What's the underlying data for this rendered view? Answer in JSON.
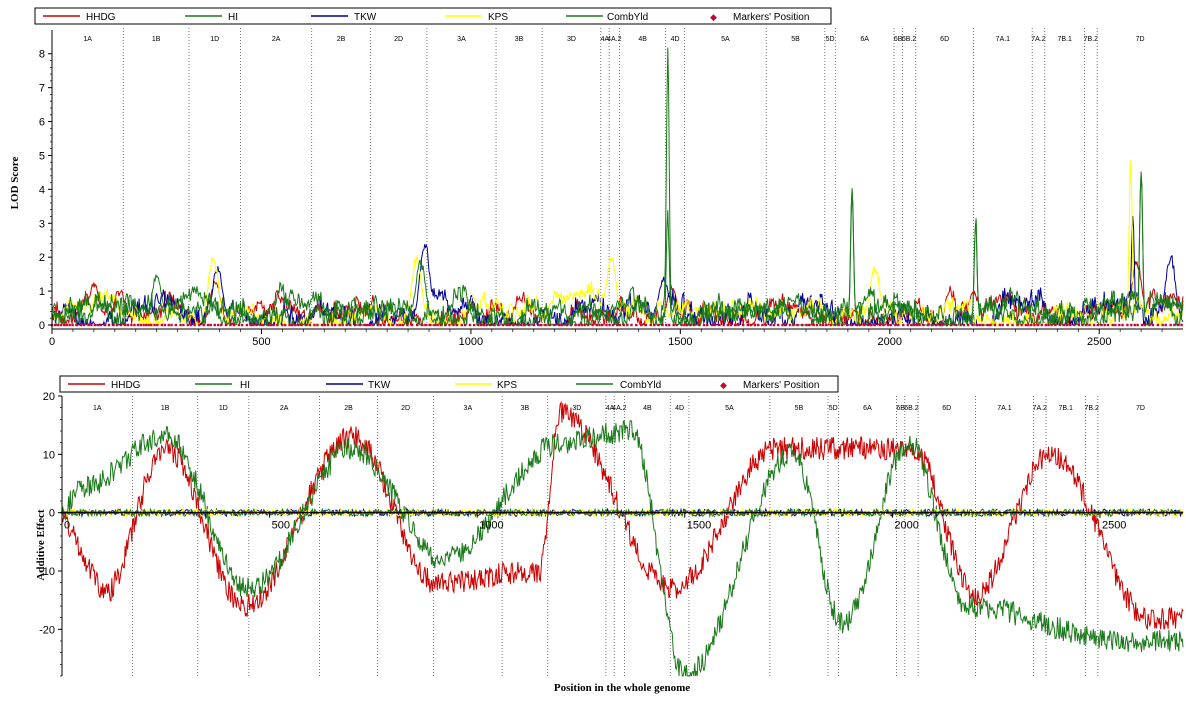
{
  "colors": {
    "HHDG": "#cc0000",
    "HI": "#1a7a1a",
    "TKW": "#000099",
    "KPS": "#ffff00",
    "CombYld": "#1a7a1a",
    "markers": "#cc0033"
  },
  "chart_data": [
    {
      "type": "line",
      "ylabel": "LOD Score",
      "xlabel": "",
      "xlim": [
        0,
        2700
      ],
      "ylim": [
        0,
        8.7
      ],
      "x_ticks": [
        "0",
        "500",
        "1000",
        "1500",
        "2000",
        "2500"
      ],
      "y_ticks": [
        "0",
        "1",
        "2",
        "3",
        "4",
        "5",
        "6",
        "7",
        "8"
      ],
      "legend": [
        "HHDG",
        "HI",
        "TKW",
        "KPS",
        "CombYld",
        "Markers' Position"
      ],
      "legend_placement": "top",
      "grid": false,
      "chromosomes": [
        {
          "label": "1A",
          "start": 0,
          "end": 170
        },
        {
          "label": "1B",
          "start": 170,
          "end": 327
        },
        {
          "label": "1D",
          "start": 327,
          "end": 450
        },
        {
          "label": "2A",
          "start": 450,
          "end": 620
        },
        {
          "label": "2B",
          "start": 620,
          "end": 760
        },
        {
          "label": "2D",
          "start": 760,
          "end": 895
        },
        {
          "label": "3A",
          "start": 895,
          "end": 1060
        },
        {
          "label": "3B",
          "start": 1060,
          "end": 1170
        },
        {
          "label": "3D",
          "start": 1170,
          "end": 1310
        },
        {
          "label": "4A",
          "start": 1310,
          "end": 1330
        },
        {
          "label": "4A.2",
          "start": 1330,
          "end": 1355
        },
        {
          "label": "4B",
          "start": 1355,
          "end": 1465
        },
        {
          "label": "4D",
          "start": 1465,
          "end": 1510
        },
        {
          "label": "5A",
          "start": 1510,
          "end": 1705
        },
        {
          "label": "5B",
          "start": 1705,
          "end": 1845
        },
        {
          "label": "5D",
          "start": 1845,
          "end": 1870
        },
        {
          "label": "6A",
          "start": 1870,
          "end": 2010
        },
        {
          "label": "6B",
          "start": 2010,
          "end": 2030
        },
        {
          "label": "6B.2",
          "start": 2030,
          "end": 2062
        },
        {
          "label": "6D",
          "start": 2062,
          "end": 2200
        },
        {
          "label": "7A.1",
          "start": 2200,
          "end": 2340
        },
        {
          "label": "7A.2",
          "start": 2340,
          "end": 2370
        },
        {
          "label": "7B.1",
          "start": 2370,
          "end": 2465
        },
        {
          "label": "7B.2",
          "start": 2465,
          "end": 2495
        },
        {
          "label": "7D",
          "start": 2495,
          "end": 2700
        }
      ],
      "series": [
        {
          "name": "HHDG",
          "peaks": [
            [
              100,
              1.3
            ],
            [
              390,
              1.4
            ],
            [
              1480,
              1.2
            ],
            [
              2200,
              1.0
            ],
            [
              2590,
              2.0
            ]
          ]
        },
        {
          "name": "HI",
          "peaks": [
            [
              250,
              1.6
            ],
            [
              880,
              2.0
            ],
            [
              1470,
              3.5
            ],
            [
              1910,
              4.4
            ],
            [
              2205,
              3.3
            ],
            [
              2600,
              5.1
            ]
          ]
        },
        {
          "name": "TKW",
          "peaks": [
            [
              395,
              1.8
            ],
            [
              890,
              2.6
            ],
            [
              1460,
              1.5
            ],
            [
              2580,
              3.7
            ],
            [
              2670,
              2.2
            ]
          ]
        },
        {
          "name": "KPS",
          "peaks": [
            [
              385,
              2.2
            ],
            [
              870,
              2.1
            ],
            [
              1335,
              2.1
            ],
            [
              1965,
              1.8
            ],
            [
              2575,
              5.2
            ]
          ]
        },
        {
          "name": "CombYld",
          "peaks": [
            [
              1470,
              8.3
            ],
            [
              1910,
              4.4
            ],
            [
              2205,
              3.3
            ],
            [
              2600,
              5.1
            ]
          ]
        }
      ]
    },
    {
      "type": "line",
      "ylabel": "Additive Effect",
      "xlabel": "Position in the whole genome",
      "xlim": [
        0,
        2700
      ],
      "ylim": [
        -28,
        20
      ],
      "x_ticks": [
        "0",
        "500",
        "1000",
        "1500",
        "2000",
        "2500"
      ],
      "y_ticks": [
        "20",
        "10",
        "0",
        "-10",
        "-20"
      ],
      "legend": [
        "HHDG",
        "HI",
        "TKW",
        "KPS",
        "CombYld",
        "Markers' Position"
      ],
      "legend_placement": "top",
      "grid": false,
      "series": [
        {
          "name": "HHDG",
          "peaks": [
            [
              100,
              -14
            ],
            [
              250,
              11
            ],
            [
              440,
              -16
            ],
            [
              700,
              13
            ],
            [
              900,
              -12
            ],
            [
              1150,
              -10
            ],
            [
              1200,
              17
            ],
            [
              1470,
              -13
            ],
            [
              1720,
              11
            ],
            [
              2050,
              11
            ],
            [
              2200,
              -14
            ],
            [
              2380,
              10
            ],
            [
              2620,
              -18
            ]
          ]
        },
        {
          "name": "HI",
          "peaks": [
            [
              40,
              4
            ],
            [
              250,
              13
            ],
            [
              450,
              -13
            ],
            [
              700,
              11
            ],
            [
              920,
              -8
            ],
            [
              1200,
              12
            ],
            [
              1370,
              14
            ],
            [
              1500,
              -28
            ],
            [
              1760,
              10
            ],
            [
              1880,
              -19
            ],
            [
              2040,
              12
            ],
            [
              2180,
              -16
            ],
            [
              2550,
              -22
            ]
          ]
        }
      ]
    }
  ]
}
